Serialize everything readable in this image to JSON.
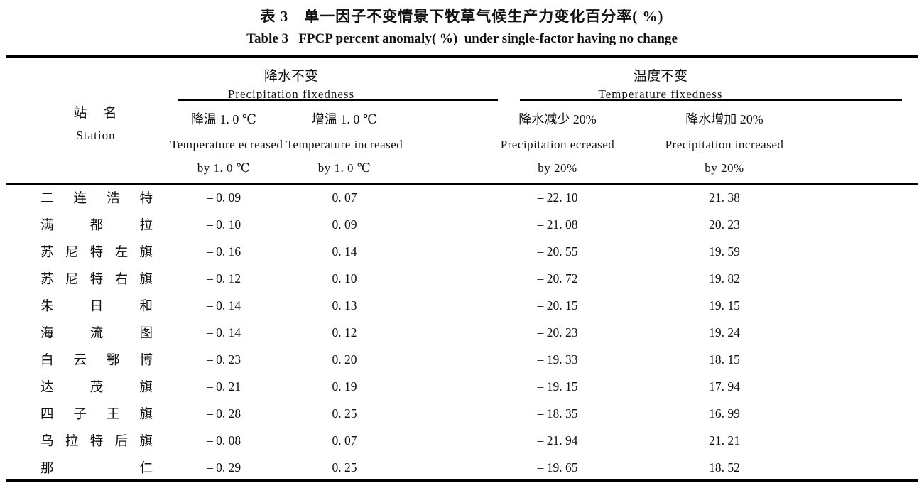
{
  "title_cn": "表 3　单一因子不变情景下牧草气候生产力变化百分率( %)",
  "title_en": "Table 3   FPCP percent anomaly( %)  under single-factor having no change",
  "station_header": {
    "cn": "站　名",
    "en": "Station"
  },
  "groups": [
    {
      "cn": "降水不变",
      "en": "Precipitation fixedness"
    },
    {
      "cn": "温度不变",
      "en": "Temperature fixedness"
    }
  ],
  "columns": [
    {
      "cn": "降温 1. 0 ℃",
      "en1": "Temperature ecreased",
      "en2": "by 1. 0 ℃"
    },
    {
      "cn": "增温 1. 0 ℃",
      "en1": "Temperature increased",
      "en2": "by 1. 0 ℃"
    },
    {
      "cn": "降水减少 20%",
      "en1": "Precipitation ecreased",
      "en2": "by 20%"
    },
    {
      "cn": "降水增加 20%",
      "en1": "Precipitation increased",
      "en2": "by 20%"
    }
  ],
  "rows": [
    {
      "station": "二连浩特",
      "t_down": "– 0. 09",
      "t_up": "0. 07",
      "p_down": "– 22. 10",
      "p_up": "21. 38"
    },
    {
      "station": "满都拉",
      "t_down": "– 0. 10",
      "t_up": "0. 09",
      "p_down": "– 21. 08",
      "p_up": "20. 23"
    },
    {
      "station": "苏尼特左旗",
      "t_down": "– 0. 16",
      "t_up": "0. 14",
      "p_down": "– 20. 55",
      "p_up": "19. 59"
    },
    {
      "station": "苏尼特右旗",
      "t_down": "– 0. 12",
      "t_up": "0. 10",
      "p_down": "– 20. 72",
      "p_up": "19. 82"
    },
    {
      "station": "朱日和",
      "t_down": "– 0. 14",
      "t_up": "0. 13",
      "p_down": "– 20. 15",
      "p_up": "19. 15"
    },
    {
      "station": "海流图",
      "t_down": "– 0. 14",
      "t_up": "0. 12",
      "p_down": "– 20. 23",
      "p_up": "19. 24"
    },
    {
      "station": "白云鄂博",
      "t_down": "– 0. 23",
      "t_up": "0. 20",
      "p_down": "– 19. 33",
      "p_up": "18. 15"
    },
    {
      "station": "达茂旗",
      "t_down": "– 0. 21",
      "t_up": "0. 19",
      "p_down": "– 19. 15",
      "p_up": "17. 94"
    },
    {
      "station": "四子王旗",
      "t_down": "– 0. 28",
      "t_up": "0. 25",
      "p_down": "– 18. 35",
      "p_up": "16. 99"
    },
    {
      "station": "乌拉特后旗",
      "t_down": "– 0. 08",
      "t_up": "0. 07",
      "p_down": "– 21. 94",
      "p_up": "21. 21"
    },
    {
      "station": "那仁",
      "t_down": "– 0. 29",
      "t_up": "0. 25",
      "p_down": "– 19. 65",
      "p_up": "18. 52"
    }
  ]
}
